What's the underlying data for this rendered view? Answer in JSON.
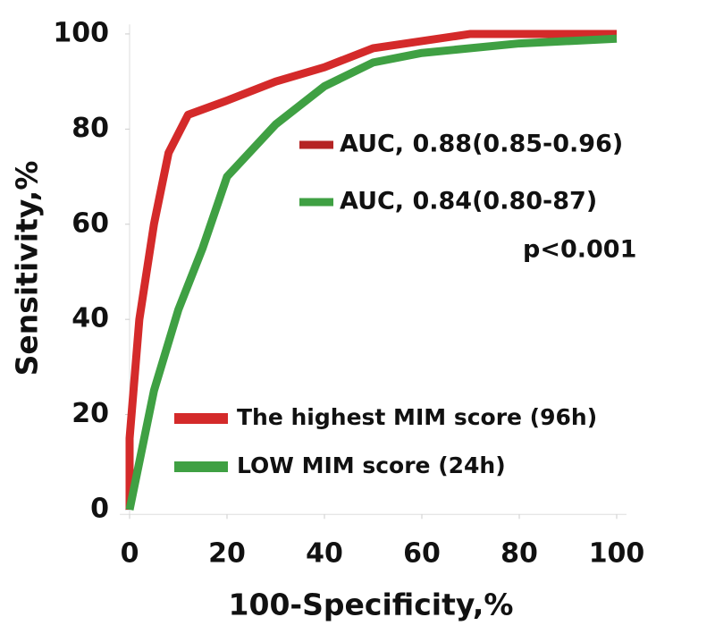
{
  "chart_data": {
    "type": "line",
    "xlabel": "100-Specificity,%",
    "ylabel": "Sensitivity,%",
    "xlim": [
      -2,
      102
    ],
    "ylim": [
      -1,
      102
    ],
    "xticks": [
      0,
      20,
      40,
      60,
      80,
      100
    ],
    "yticks": [
      0,
      20,
      40,
      60,
      80,
      100
    ],
    "series": [
      {
        "name": "The highest MIM score (96h)",
        "color": "#d42a2a",
        "x": [
          0,
          0,
          2,
          5,
          8,
          12,
          20,
          30,
          40,
          50,
          70,
          100
        ],
        "values": [
          0,
          15,
          40,
          60,
          75,
          83,
          86,
          90,
          93,
          97,
          100,
          100
        ]
      },
      {
        "name": "LOW MIM score (24h)",
        "color": "#3fa043",
        "x": [
          0,
          5,
          10,
          15,
          20,
          30,
          40,
          50,
          60,
          80,
          100
        ],
        "values": [
          0,
          25,
          42,
          55,
          70,
          81,
          89,
          94,
          96,
          98,
          99
        ]
      }
    ],
    "annotations": [
      {
        "text": "AUC, 0.88(0.85-0.96)",
        "color": "#b52424"
      },
      {
        "text": "AUC, 0.84(0.80-87)",
        "color": "#3fa043"
      },
      {
        "text": "p<0.001"
      }
    ]
  }
}
